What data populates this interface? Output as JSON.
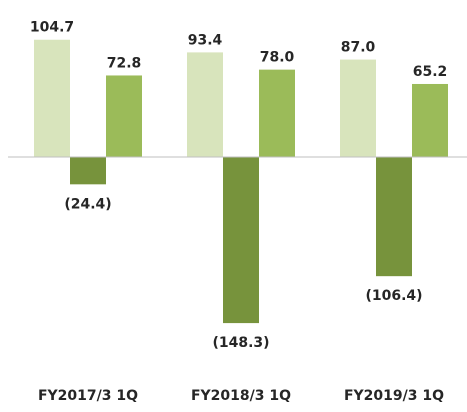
{
  "chart_data": {
    "type": "bar",
    "categories": [
      "FY2017/3 1Q",
      "FY2018/3 1Q",
      "FY2019/3 1Q"
    ],
    "series": [
      {
        "color": "#d8e4bc",
        "values": [
          104.7,
          93.4,
          87.0
        ],
        "value_labels": [
          "104.7",
          "93.4",
          "87.0"
        ]
      },
      {
        "color": "#77933c",
        "values": [
          -24.4,
          -148.3,
          -106.4
        ],
        "value_labels": [
          "(24.4)",
          "(148.3)",
          "(106.4)"
        ]
      },
      {
        "color": "#9bbb59",
        "values": [
          72.8,
          78.0,
          65.2
        ],
        "value_labels": [
          "72.8",
          "78.0",
          "65.2"
        ]
      }
    ],
    "ylim": [
      -150,
      110
    ]
  }
}
